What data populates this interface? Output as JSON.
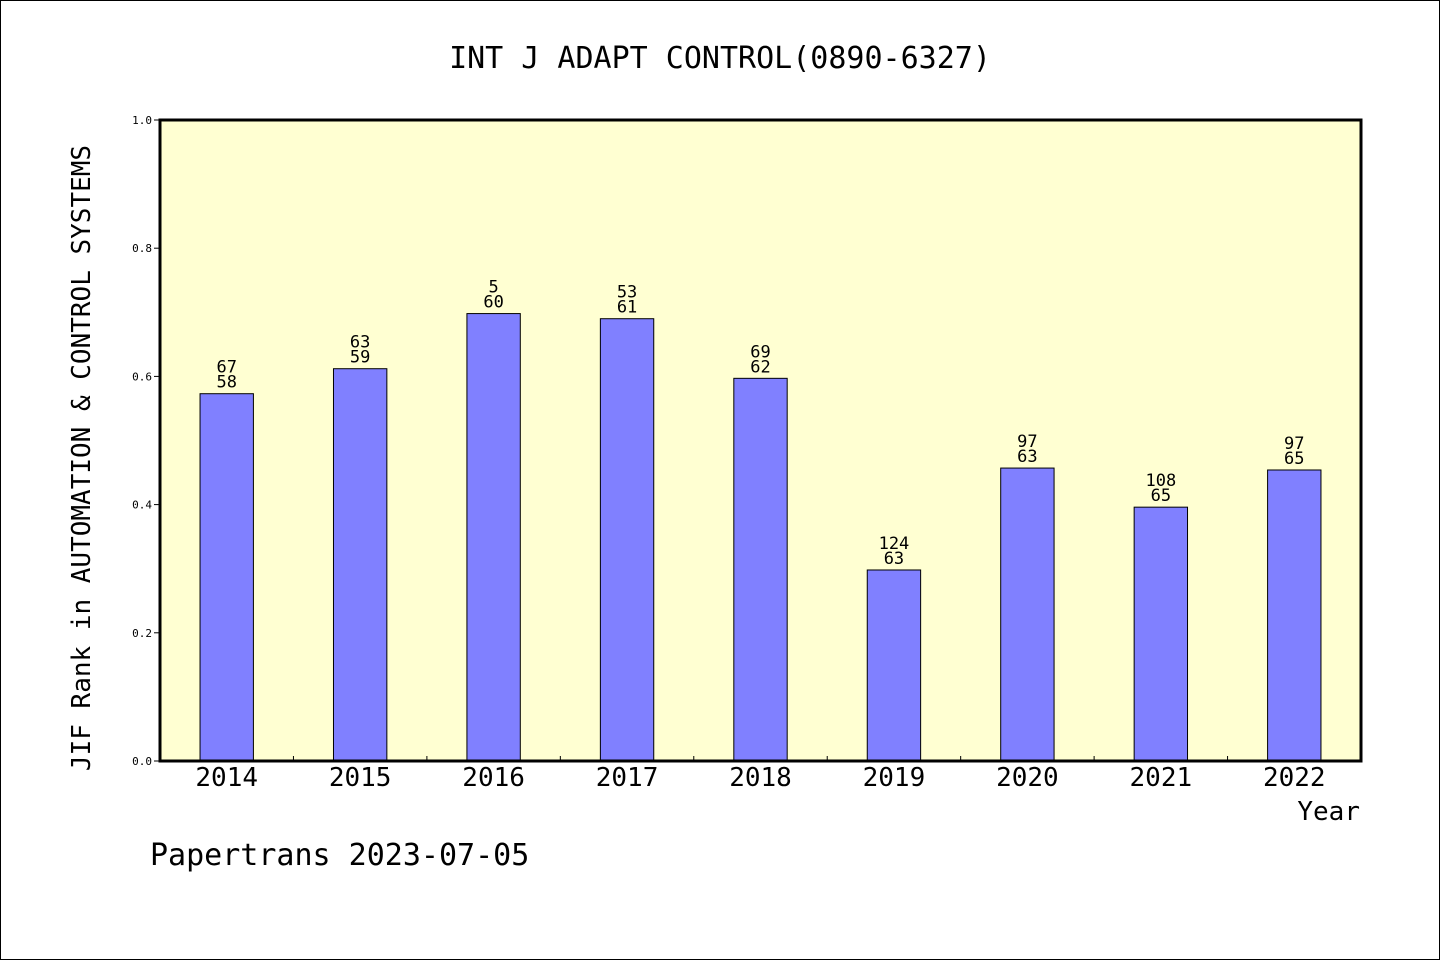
{
  "chart_data": {
    "type": "bar",
    "title": "INT J ADAPT CONTROL(0890-6327)",
    "xlabel": "Year",
    "ylabel": "JIF Rank in AUTOMATION & CONTROL SYSTEMS",
    "ylim": [
      0,
      1
    ],
    "yticks": [
      "0.0",
      "0.2",
      "0.4",
      "0.6",
      "0.8",
      "1.0"
    ],
    "categories": [
      "2014",
      "2015",
      "2016",
      "2017",
      "2018",
      "2019",
      "2020",
      "2021",
      "2022"
    ],
    "values": [
      0.573,
      0.612,
      0.698,
      0.69,
      0.597,
      0.298,
      0.457,
      0.396,
      0.454
    ],
    "bar_labels_top": [
      "67",
      "63",
      "5",
      "53",
      "69",
      "124",
      "97",
      "108",
      "97"
    ],
    "bar_labels_bottom": [
      "58",
      "59",
      "60",
      "61",
      "62",
      "63",
      "63",
      "65",
      "65"
    ],
    "colors": {
      "bar": "#8080ff",
      "plot_bg": "#ffffd2",
      "axis": "#000000"
    },
    "grid": false,
    "legend": "none"
  },
  "footer": {
    "text": "Papertrans 2023-07-05"
  }
}
